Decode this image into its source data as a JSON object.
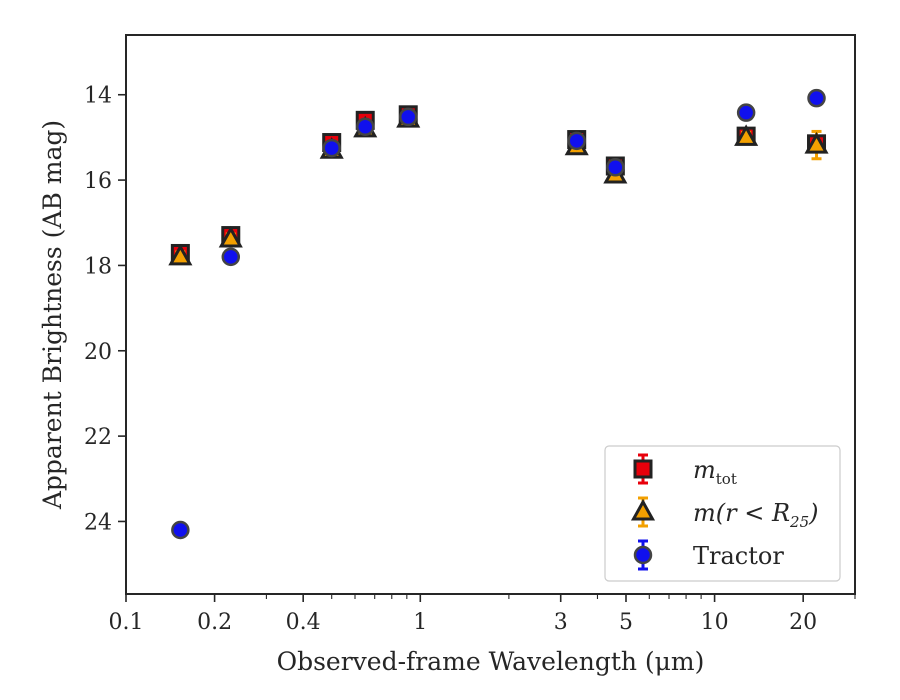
{
  "chart_data": {
    "type": "scatter",
    "xlabel": "Observed-frame Wavelength (μm)",
    "ylabel": "Apparent Brightness (AB mag)",
    "x_scale": "log",
    "xlim": [
      0.1,
      30
    ],
    "ylim": [
      25.7,
      12.6
    ],
    "y_inverted": true,
    "grid": false,
    "legend_position": "bottom-right",
    "x_ticks": [
      0.1,
      0.2,
      0.4,
      1,
      3,
      5,
      10,
      20
    ],
    "x_tick_labels": [
      "0.1",
      "0.2",
      "0.4",
      "1",
      "3",
      "5",
      "10",
      "20"
    ],
    "y_ticks": [
      14,
      16,
      18,
      20,
      22,
      24
    ],
    "y_tick_labels": [
      "14",
      "16",
      "18",
      "20",
      "22",
      "24"
    ],
    "series": [
      {
        "name_base": "m",
        "name_sub": "tot",
        "marker": "square",
        "color": "#e8000b",
        "errcolor": "#e8000b",
        "points": [
          {
            "x": 0.153,
            "y": 17.72,
            "err": 0.08
          },
          {
            "x": 0.227,
            "y": 17.3,
            "err": 0.08
          },
          {
            "x": 0.5,
            "y": 15.12,
            "err": 0.1
          },
          {
            "x": 0.65,
            "y": 14.6,
            "err": 0.1
          },
          {
            "x": 0.91,
            "y": 14.47,
            "err": 0.06
          },
          {
            "x": 3.4,
            "y": 15.05,
            "err": 0.05
          },
          {
            "x": 4.6,
            "y": 15.67,
            "err": 0.05
          },
          {
            "x": 12.8,
            "y": 14.97,
            "err": 0.05
          },
          {
            "x": 22.2,
            "y": 15.15,
            "err": 0.1
          }
        ]
      },
      {
        "name_base": "m(r < R",
        "name_sub": "25",
        "name_tail": ")",
        "marker": "triangle",
        "color": "#f3a000",
        "errcolor": "#f3a000",
        "points": [
          {
            "x": 0.153,
            "y": 17.8,
            "err": 0.08
          },
          {
            "x": 0.227,
            "y": 17.38,
            "err": 0.08
          },
          {
            "x": 0.5,
            "y": 15.3,
            "err": 0.08
          },
          {
            "x": 0.65,
            "y": 14.8,
            "err": 0.08
          },
          {
            "x": 0.91,
            "y": 14.57,
            "err": 0.05
          },
          {
            "x": 3.4,
            "y": 15.22,
            "err": 0.05
          },
          {
            "x": 4.6,
            "y": 15.88,
            "err": 0.05
          },
          {
            "x": 12.8,
            "y": 15.0,
            "err": 0.05
          },
          {
            "x": 22.2,
            "y": 15.18,
            "err": 0.32
          }
        ]
      },
      {
        "name_base": "Tractor",
        "name_sub": "",
        "marker": "circle",
        "color": "#1010ee",
        "errcolor": "#1010ee",
        "points": [
          {
            "x": 0.153,
            "y": 24.2,
            "err": 0.05
          },
          {
            "x": 0.227,
            "y": 17.8,
            "err": 0.05
          },
          {
            "x": 0.5,
            "y": 15.25,
            "err": 0.05
          },
          {
            "x": 0.65,
            "y": 14.75,
            "err": 0.05
          },
          {
            "x": 0.91,
            "y": 14.52,
            "err": 0.05
          },
          {
            "x": 3.4,
            "y": 15.08,
            "err": 0.05
          },
          {
            "x": 4.6,
            "y": 15.7,
            "err": 0.05
          },
          {
            "x": 12.8,
            "y": 14.42,
            "err": 0.05
          },
          {
            "x": 22.2,
            "y": 14.08,
            "err": 0.05
          }
        ]
      }
    ]
  }
}
